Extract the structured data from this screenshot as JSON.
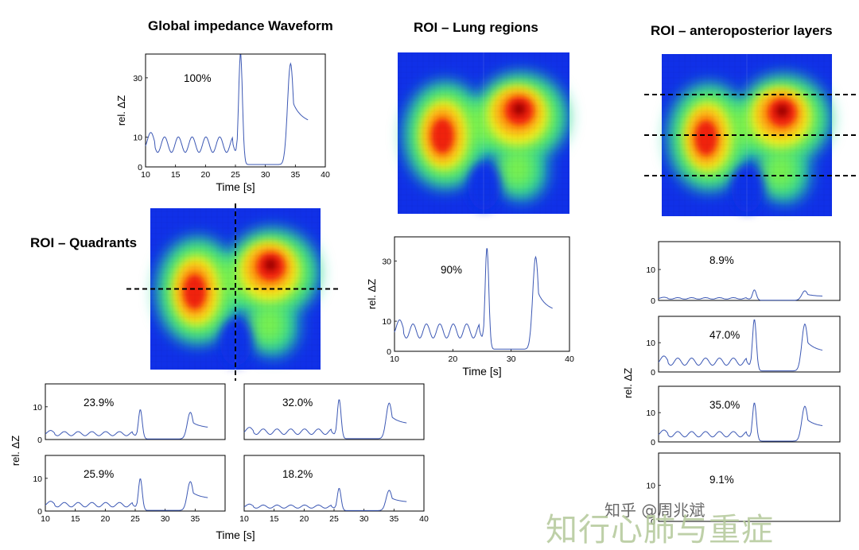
{
  "titles": {
    "global": "Global impedance Waveform",
    "lung_regions": "ROI – Lung regions",
    "ap_layers": "ROI – anteroposterior layers",
    "quadrants": "ROI – Quadrants"
  },
  "axis_labels": {
    "y": "rel. ΔZ",
    "x": "Time [s]"
  },
  "watermark": {
    "handle": "知乎 @周兆斌",
    "brand": "知行心肺与重症"
  },
  "chart_data": [
    {
      "id": "global",
      "type": "line",
      "percent_label": "100%",
      "xlim": [
        10,
        40
      ],
      "ylim": [
        0,
        38
      ],
      "xticks": [
        10,
        15,
        20,
        25,
        30,
        35,
        40
      ],
      "yticks": [
        0,
        10,
        30
      ],
      "scale": 1.0
    },
    {
      "id": "lung",
      "type": "line",
      "percent_label": "90%",
      "xlim": [
        10,
        40
      ],
      "ylim": [
        0,
        38
      ],
      "xticks": [
        10,
        20,
        30,
        40
      ],
      "yticks": [
        0,
        10,
        30
      ],
      "scale": 0.9
    },
    {
      "id": "quad_tl",
      "type": "line",
      "percent_label": "23.9%",
      "xlim": [
        10,
        40
      ],
      "ylim": [
        0,
        17
      ],
      "xticks": [],
      "yticks": [
        0,
        10
      ],
      "scale": 0.239
    },
    {
      "id": "quad_tr",
      "type": "line",
      "percent_label": "32.0%",
      "xlim": [
        10,
        40
      ],
      "ylim": [
        0,
        17
      ],
      "xticks": [],
      "yticks": [],
      "scale": 0.32
    },
    {
      "id": "quad_bl",
      "type": "line",
      "percent_label": "25.9%",
      "xlim": [
        10,
        40
      ],
      "ylim": [
        0,
        17
      ],
      "xticks": [
        10,
        15,
        20,
        25,
        30,
        35
      ],
      "yticks": [
        0,
        10
      ],
      "scale": 0.259
    },
    {
      "id": "quad_br",
      "type": "line",
      "percent_label": "18.2%",
      "xlim": [
        10,
        40
      ],
      "ylim": [
        0,
        17
      ],
      "xticks": [
        10,
        15,
        20,
        25,
        30,
        35,
        40
      ],
      "yticks": [],
      "scale": 0.182
    },
    {
      "id": "ap1",
      "type": "line",
      "percent_label": "8.9%",
      "xlim": [
        10,
        40
      ],
      "ylim": [
        0,
        19
      ],
      "xticks": [],
      "yticks": [
        0,
        10
      ],
      "scale": 0.089
    },
    {
      "id": "ap2",
      "type": "line",
      "percent_label": "47.0%",
      "xlim": [
        10,
        40
      ],
      "ylim": [
        0,
        19
      ],
      "xticks": [],
      "yticks": [
        0,
        10
      ],
      "scale": 0.47
    },
    {
      "id": "ap3",
      "type": "line",
      "percent_label": "35.0%",
      "xlim": [
        10,
        40
      ],
      "ylim": [
        0,
        19
      ],
      "xticks": [],
      "yticks": [
        0,
        10
      ],
      "scale": 0.35
    },
    {
      "id": "ap4",
      "type": "line",
      "percent_label": "9.1%",
      "xlim": [
        10,
        40
      ],
      "ylim": [
        0,
        19
      ],
      "xticks": [],
      "yticks": [
        0,
        10
      ],
      "scale": 0.091
    }
  ],
  "colors": {
    "trace": "#3c58b4",
    "map_background": "#1030e8",
    "roi_line": "#000000"
  }
}
